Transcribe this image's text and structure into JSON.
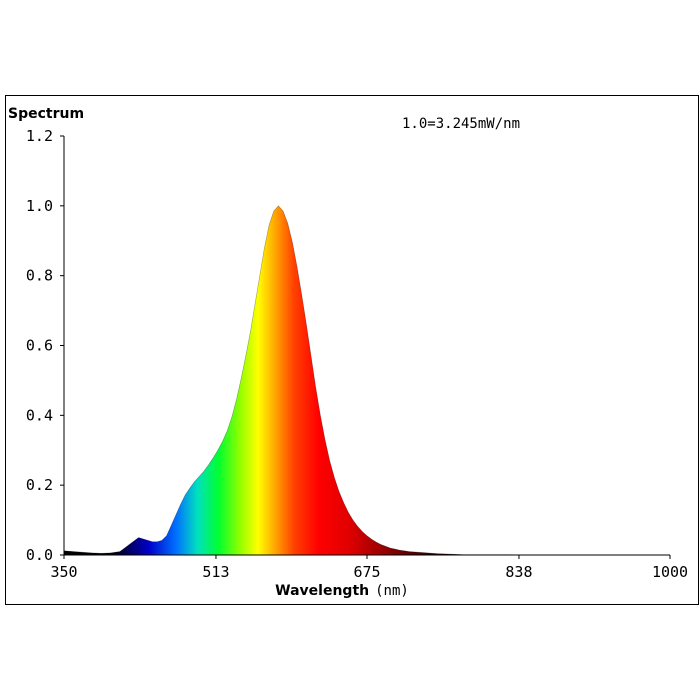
{
  "chart_data": {
    "type": "area",
    "title": "Spectrum",
    "annotation": "1.0=3.245mW/nm",
    "xlabel": "Wavelength",
    "xlabel_unit": "(nm)",
    "ylabel": "",
    "xlim": [
      350,
      1000
    ],
    "ylim": [
      0,
      1.2
    ],
    "x_ticks": [
      {
        "value": 350,
        "label": "350"
      },
      {
        "value": 513,
        "label": "513"
      },
      {
        "value": 675,
        "label": "675"
      },
      {
        "value": 838,
        "label": "838"
      },
      {
        "value": 1000,
        "label": "1000"
      }
    ],
    "y_ticks": [
      {
        "value": 0.0,
        "label": "0.0"
      },
      {
        "value": 0.2,
        "label": "0.2"
      },
      {
        "value": 0.4,
        "label": "0.4"
      },
      {
        "value": 0.6,
        "label": "0.6"
      },
      {
        "value": 0.8,
        "label": "0.8"
      },
      {
        "value": 1.0,
        "label": "1.0"
      },
      {
        "value": 1.2,
        "label": "1.2"
      }
    ],
    "grid": false,
    "x": [
      350,
      360,
      370,
      380,
      390,
      400,
      410,
      420,
      430,
      440,
      445,
      450,
      455,
      460,
      465,
      470,
      475,
      480,
      485,
      490,
      495,
      500,
      505,
      510,
      515,
      520,
      525,
      530,
      535,
      540,
      545,
      550,
      555,
      560,
      565,
      570,
      575,
      580,
      585,
      590,
      595,
      600,
      605,
      610,
      615,
      620,
      625,
      630,
      635,
      640,
      645,
      650,
      655,
      660,
      665,
      670,
      675,
      680,
      685,
      690,
      695,
      700,
      705,
      710,
      715,
      720,
      730,
      740,
      750,
      760,
      770,
      780,
      800,
      820,
      850,
      880,
      920,
      960,
      1000
    ],
    "values": [
      0.012,
      0.01,
      0.008,
      0.006,
      0.005,
      0.006,
      0.01,
      0.03,
      0.05,
      0.042,
      0.038,
      0.038,
      0.042,
      0.055,
      0.085,
      0.115,
      0.145,
      0.172,
      0.192,
      0.21,
      0.225,
      0.24,
      0.258,
      0.278,
      0.3,
      0.325,
      0.355,
      0.395,
      0.445,
      0.505,
      0.57,
      0.64,
      0.72,
      0.8,
      0.88,
      0.945,
      0.985,
      1.0,
      0.985,
      0.95,
      0.895,
      0.825,
      0.745,
      0.66,
      0.57,
      0.48,
      0.4,
      0.33,
      0.27,
      0.222,
      0.182,
      0.15,
      0.122,
      0.1,
      0.082,
      0.067,
      0.055,
      0.045,
      0.037,
      0.03,
      0.025,
      0.02,
      0.017,
      0.014,
      0.012,
      0.01,
      0.008,
      0.006,
      0.004,
      0.003,
      0.002,
      0.001,
      0.001,
      0.001,
      0.0,
      0.0,
      0.0,
      0.0,
      0.0
    ]
  }
}
